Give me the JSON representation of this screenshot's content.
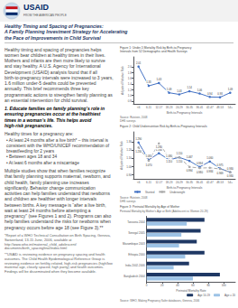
{
  "header": [
    "USAID",
    "FROM THE AMERICAN PEOPLE"
  ],
  "title": [
    "Healthy Timing and Spacing of Pregnancies:",
    "A Family Planning Investment Strategy for Accelerating",
    "the Pace of Improvements in Child Survival"
  ],
  "annotations": [
    "Healthy timing and spacing of pregnancies helps women bear children at healthy times in their lives. Mothers and infants are then more likely to survive and stay healthy. A U.S. Agency for International Development (USAID) analysis found that if all birth-to-pregnancy intervals were increased to 3 years, 1.6 million under-5 deaths could be prevented annually. This brief recommends three key programmatic actions to strengthen family planning as an essential intervention for child survival.",
    "1. Educate families on family planning’s role in\nensuring pregnancies occur at the healthiest\ntimes in a woman’s life. This helps avoid\nhigh-risk pregnancies.",
    "Healthy times for a pregnancy are:",
    "• At least 24 months after a live birth* – this interval is consistent with the WHO/UNICEF recommendation of breastfeeding for 2 years",
    "• Between ages 18 and 34",
    "• At least 6 months after a miscarriage",
    "Multiple studies show that when families recognize that family planning supports maternal, newborn, and child health, family planning use increases significantly. Behavior change communication activities can help families understand that newborns and children are healthier with longer intervals between births. A key message is “after a live birth, wait at least 24 months before attempting a pregnancy” (see Figures 1 and 2). Programs can also help families understand the risks for newborns when pregnancy occurs before age 18 (see Figure 3).**",
    "*Report of a WHO Technical Consultation on Birth Spacing, Geneva, Switzerland, 13-15 June, 2006, available at http://www.who.int/maternal_child_adolescent/\ndocuments/birth_spacingfinal/index.html",
    "**USAID is reviewing evidence on pregnancy spacing and health outcomes. The Child Health Epidemiological Reference Group is reviewing evidence on fertility-related, high-risk pregnancies (high/low maternal age, closely spaced, high parity) and health outcomes. Findings will be disseminated when they become available."
  ],
  "chart_data": [
    {
      "type": "line",
      "title": [
        "Figure 1: Under-5 Mortality Risk by Birth-to-Pregnancy",
        "Intervals from 52 Demographic and Health Surveys"
      ],
      "categories": [
        "<6",
        "6-11",
        "12-17",
        "18-23",
        "24-29",
        "30-35",
        "36-41",
        "42-47",
        "48-53",
        "54+"
      ],
      "values": [
        2.01,
        1.33,
        1.43,
        1.089,
        1.03,
        1.14,
        1.06,
        0.94,
        0.93,
        1.09
      ],
      "value_labels": [
        "2.01",
        "1.33",
        "1.43",
        "1.09",
        "1.03",
        "1.14",
        "1.06",
        "0.94",
        "0.93",
        "1.09"
      ],
      "color": "#4472c4",
      "marker": "circle",
      "line_style": "solid",
      "xlabel": "Birth-to-Pregnancy Intervals",
      "ylabel": "Adjusted Relative Risk",
      "ylim": [
        0.7,
        2.35
      ],
      "yticks": [
        0.8,
        {
          "value": 1,
          "label": "1.0"
        },
        1.2,
        1.4,
        1.6,
        1.8,
        {
          "value": 2,
          "label": "2.0"
        }
      ],
      "data_labels": true,
      "grid": false,
      "annotations": [
        "Source: Rutstein, 2008\nDHS surveys"
      ]
    },
    {
      "type": "line",
      "title": "Figure 2: Child Undernutrition Risk by Birth-to-Pregnancy Intervals",
      "categories": [
        "<6",
        "6-11",
        "12-17",
        "18-23",
        "24-29",
        "30-35",
        "36-41",
        "42-47",
        "48-53",
        "54+"
      ],
      "series": [
        {
          "name": "Stunted",
          "color": "#4472c4",
          "marker": "circle",
          "line_style": "solid",
          "values": [
            1.29,
            1.08,
            1.16,
            1.08,
            1.11,
            1.067,
            0.994,
            1.06,
            0.975,
            0.93
          ],
          "value_labels": [
            "1.290",
            "1.080",
            "1.160",
            "1.080",
            "1.110",
            "1.067",
            "0.994",
            "1.060",
            "0.975",
            "0.930"
          ]
        },
        {
          "name": "Underweight",
          "color": "#aaaaaa",
          "marker": "circle",
          "line_style": "dashed",
          "values": [
            1.23,
            1.07,
            1.28,
            1.11,
            1.11,
            0.994,
            0.98,
            0.984,
            0.969,
            0.93
          ],
          "value_labels": [
            "1.230",
            "1.070",
            "1.280",
            "1.110",
            "1.110",
            "0.994",
            "0.980",
            "0.984",
            "0.969",
            "0.930"
          ]
        }
      ],
      "xlabel": "Birth-to-Pregnancy Intervals",
      "ylabel": "Adjusted Relative Risk",
      "ylim": [
        0.85,
        1.42
      ],
      "yticks": [
        {
          "value": 0.9,
          "label": "0.90"
        },
        {
          "value": 1,
          "label": "1.00"
        },
        {
          "value": 1.1,
          "label": "1.10"
        },
        {
          "value": 1.2,
          "label": "1.20"
        },
        {
          "value": 1.3,
          "label": "1.30"
        }
      ],
      "data_labels": true,
      "legend": "lower left",
      "grid": false,
      "annotations": [
        "Source: Rutstein, 2008\nDHS surveys"
      ]
    },
    {
      "type": "bar",
      "orientation": "horizontal",
      "title": "Figure 3: Perinatal Mortality by Age of Mother",
      "subtitle": "Perinatal Mortality by Mother's Age at Birth (Adolescent vs Women 20-29)",
      "categories": [
        "Bangladesh 2004",
        "India 2002-2006",
        "Ethiopia 2000",
        "Mozambique 2003",
        "Senegal 2005",
        "Tanzania 2004"
      ],
      "series": [
        {
          "name": "Age 10-19",
          "color": "#1f3864",
          "values": [
            95,
            55,
            75,
            65,
            70,
            75
          ]
        },
        {
          "name": "Age ≥ 20",
          "color": "#9dc3e6",
          "values": [
            60,
            35,
            50,
            42,
            45,
            52
          ]
        }
      ],
      "xlabel": "Perinatal Mortality Rate",
      "xlim": [
        0,
        115
      ],
      "xticks": [
        0,
        20,
        40,
        60,
        80,
        100
      ],
      "legend": "lower right",
      "grid": false,
      "annotations": [
        "Source: WHO, Making Pregnancy Safer databases, Geneva, 2006"
      ]
    }
  ]
}
